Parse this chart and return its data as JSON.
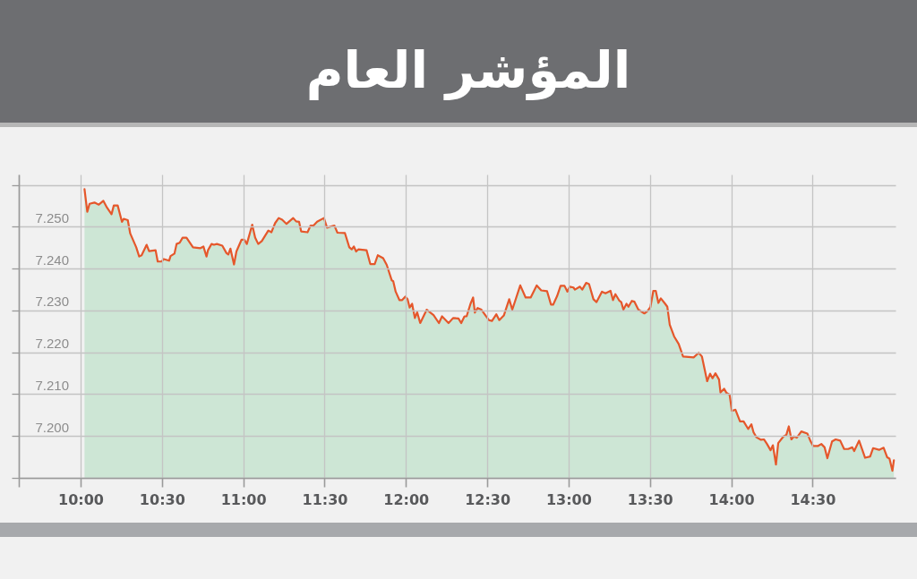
{
  "chart_data": {
    "type": "area",
    "title": "المؤشر العام",
    "x": [
      10.024,
      10.041,
      10.055,
      10.085,
      10.112,
      10.14,
      10.162,
      10.19,
      10.204,
      10.228,
      10.254,
      10.265,
      10.29,
      10.305,
      10.342,
      10.36,
      10.375,
      10.406,
      10.421,
      10.461,
      10.474,
      10.498,
      10.511,
      10.544,
      10.553,
      10.577,
      10.59,
      10.609,
      10.627,
      10.651,
      10.691,
      10.737,
      10.755,
      10.774,
      10.783,
      10.805,
      10.82,
      10.838,
      10.871,
      10.897,
      10.908,
      10.921,
      10.943,
      10.958,
      10.989,
      11.007,
      11.022,
      11.055,
      11.073,
      11.092,
      11.114,
      11.154,
      11.173,
      11.196,
      11.218,
      11.239,
      11.266,
      11.307,
      11.325,
      11.343,
      11.356,
      11.395,
      11.414,
      11.432,
      11.454,
      11.496,
      11.515,
      11.56,
      11.579,
      11.625,
      11.652,
      11.667,
      11.68,
      11.694,
      11.707,
      11.758,
      11.781,
      11.808,
      11.827,
      11.86,
      11.882,
      11.913,
      11.922,
      11.937,
      11.96,
      11.977,
      11.996,
      12.01,
      12.023,
      12.038,
      12.055,
      12.069,
      12.088,
      12.128,
      12.17,
      12.203,
      12.222,
      12.262,
      12.29,
      12.323,
      12.34,
      12.36,
      12.373,
      12.397,
      12.413,
      12.424,
      12.441,
      12.464,
      12.51,
      12.529,
      12.556,
      12.574,
      12.602,
      12.635,
      12.654,
      12.703,
      12.736,
      12.767,
      12.804,
      12.832,
      12.868,
      12.892,
      12.905,
      12.929,
      12.951,
      12.975,
      12.993,
      13.006,
      13.03,
      13.039,
      13.07,
      13.084,
      13.108,
      13.126,
      13.153,
      13.172,
      13.205,
      13.227,
      13.258,
      13.273,
      13.288,
      13.313,
      13.324,
      13.337,
      13.356,
      13.368,
      13.389,
      13.405,
      13.429,
      13.466,
      13.484,
      13.503,
      13.521,
      13.536,
      13.552,
      13.567,
      13.594,
      13.607,
      13.622,
      13.649,
      13.677,
      13.704,
      13.769,
      13.8,
      13.82,
      13.852,
      13.87,
      13.885,
      13.903,
      13.925,
      13.934,
      13.956,
      13.971,
      13.99,
      14.004,
      14.026,
      14.054,
      14.076,
      14.104,
      14.124,
      14.137,
      14.155,
      14.183,
      14.201,
      14.22,
      14.242,
      14.256,
      14.275,
      14.289,
      14.321,
      14.339,
      14.354,
      14.37,
      14.385,
      14.403,
      14.431,
      14.468,
      14.486,
      14.504,
      14.532,
      14.554,
      14.574,
      14.591,
      14.62,
      14.642,
      14.67,
      14.694,
      14.719,
      14.744,
      14.756,
      14.786,
      14.823,
      14.854,
      14.872,
      14.909,
      14.937,
      14.959,
      14.973,
      14.991,
      15.0
    ],
    "series": [
      {
        "color": "#cde6d5",
        "values": [
          7.259,
          7.2536,
          7.2555,
          7.2558,
          7.2553,
          7.2562,
          7.2546,
          7.253,
          7.2551,
          7.2551,
          7.2512,
          7.2519,
          7.2516,
          7.2484,
          7.2451,
          7.2429,
          7.2432,
          7.2457,
          7.2442,
          7.2444,
          7.2417,
          7.2417,
          7.2423,
          7.2419,
          7.243,
          7.2436,
          7.2459,
          7.2462,
          7.2474,
          7.2474,
          7.2451,
          7.2449,
          7.2453,
          7.2429,
          7.2444,
          7.2459,
          7.2457,
          7.2459,
          7.2455,
          7.2437,
          7.2434,
          7.2448,
          7.241,
          7.2441,
          7.2469,
          7.2469,
          7.2459,
          7.2505,
          7.2474,
          7.2459,
          7.2466,
          7.2491,
          7.2487,
          7.2509,
          7.2521,
          7.2517,
          7.2507,
          7.2521,
          7.2513,
          7.2512,
          7.2489,
          7.2487,
          7.2503,
          7.2503,
          7.2512,
          7.2521,
          7.2498,
          7.2503,
          7.2486,
          7.2485,
          7.2451,
          7.2446,
          7.2453,
          7.2441,
          7.2446,
          7.2444,
          7.2411,
          7.2411,
          7.2432,
          7.2425,
          7.2409,
          7.2372,
          7.237,
          7.2345,
          7.2325,
          7.2325,
          7.2333,
          7.2327,
          7.2307,
          7.2316,
          7.2282,
          7.2296,
          7.227,
          7.2302,
          7.2289,
          7.227,
          7.2286,
          7.227,
          7.2282,
          7.2281,
          7.227,
          7.2286,
          7.2286,
          7.2316,
          7.2331,
          7.2295,
          7.2306,
          7.2302,
          7.2277,
          7.2275,
          7.2291,
          7.2277,
          7.2288,
          7.2327,
          7.2302,
          7.236,
          7.2331,
          7.2331,
          7.236,
          7.2348,
          7.2346,
          7.2314,
          7.2314,
          7.2334,
          7.2359,
          7.2359,
          7.2345,
          7.2357,
          7.2355,
          7.235,
          7.2357,
          7.235,
          7.2366,
          7.2363,
          7.2327,
          7.232,
          7.2345,
          7.2341,
          7.2347,
          7.2325,
          7.2339,
          7.2323,
          7.232,
          7.2302,
          7.2316,
          7.2309,
          7.2323,
          7.2321,
          7.2302,
          7.2293,
          7.2298,
          7.2308,
          7.2347,
          7.2347,
          7.2318,
          7.2329,
          7.2316,
          7.2309,
          7.2266,
          7.2238,
          7.222,
          7.219,
          7.2188,
          7.2199,
          7.219,
          7.2131,
          7.2149,
          7.2138,
          7.215,
          7.2135,
          7.2104,
          7.2113,
          7.2103,
          7.2099,
          7.206,
          7.2063,
          7.2035,
          7.2035,
          7.2017,
          7.2028,
          7.2009,
          7.1997,
          7.1991,
          7.1992,
          7.1981,
          7.1966,
          7.1978,
          7.1932,
          7.1983,
          7.1999,
          7.2003,
          7.2023,
          7.1992,
          7.1999,
          7.1996,
          7.2011,
          7.2006,
          7.1989,
          7.1976,
          7.1976,
          7.1981,
          7.1973,
          7.1947,
          7.1987,
          7.1992,
          7.1989,
          7.1969,
          7.1969,
          7.1973,
          7.1964,
          7.1989,
          7.1948,
          7.1951,
          7.1971,
          7.1967,
          7.1972,
          7.1949,
          7.1946,
          7.1917,
          7.1942
        ]
      }
    ],
    "xlim": [
      9.62,
      15.01
    ],
    "xticks": [
      {
        "value": 9.62,
        "label": null
      },
      {
        "value": 10,
        "label": "10:00"
      },
      {
        "value": 10.5,
        "label": "10:30"
      },
      {
        "value": 11,
        "label": "11:00"
      },
      {
        "value": 11.5,
        "label": "11:30"
      },
      {
        "value": 12,
        "label": "12:00"
      },
      {
        "value": 12.5,
        "label": "12:30"
      },
      {
        "value": 13,
        "label": "13:00"
      },
      {
        "value": 13.5,
        "label": "13:30"
      },
      {
        "value": 14,
        "label": "14:00"
      },
      {
        "value": 14.5,
        "label": "14:30"
      }
    ],
    "ylim": [
      7.19,
      7.2625
    ],
    "yticks": [
      {
        "value": 7.19,
        "label": null
      },
      {
        "value": 7.2,
        "label": "7.200"
      },
      {
        "value": 7.21,
        "label": "7.210"
      },
      {
        "value": 7.22,
        "label": "7.220"
      },
      {
        "value": 7.23,
        "label": "7.230"
      },
      {
        "value": 7.24,
        "label": "7.240"
      },
      {
        "value": 7.25,
        "label": "7.250"
      },
      {
        "value": 7.26,
        "label": null
      }
    ],
    "grid": true
  }
}
